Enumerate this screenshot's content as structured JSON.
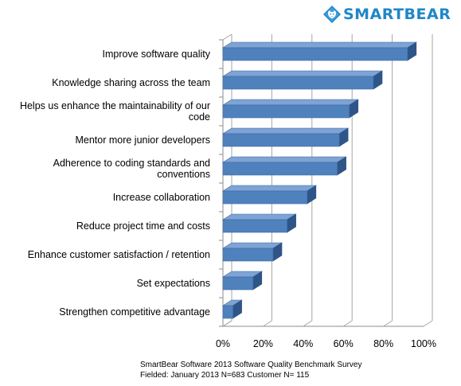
{
  "brand": {
    "logo_text": "SMARTBEAR",
    "logo_color": "#1f87c8",
    "logo_icon": "bear-head-diamond-icon"
  },
  "footnote": {
    "line1": "SmartBear Software 2013 Software Quality Benchmark Survey",
    "line2": "Fielded: January 2013 N=683 Customer N= 115"
  },
  "chart_data": {
    "type": "bar",
    "orientation": "horizontal",
    "three_d": true,
    "title": "",
    "xlabel": "",
    "ylabel": "",
    "xlim": [
      0,
      100
    ],
    "x_ticks": [
      "0%",
      "20%",
      "40%",
      "60%",
      "80%",
      "100%"
    ],
    "x_tick_values": [
      0,
      20,
      40,
      60,
      80,
      100
    ],
    "grid": true,
    "legend": "none",
    "bar_color": "#4f81bd",
    "categories": [
      [
        "Improve software quality"
      ],
      [
        "Knowledge sharing across the team"
      ],
      [
        "Helps us enhance the maintainability of our",
        "code"
      ],
      [
        "Mentor more junior developers"
      ],
      [
        "Adherence to coding standards and",
        "conventions"
      ],
      [
        "Increase collaboration"
      ],
      [
        "Reduce project time and costs"
      ],
      [
        "Enhance customer satisfaction / retention"
      ],
      [
        "Set expectations"
      ],
      [
        "Strengthen competitive advantage"
      ]
    ],
    "values": [
      92,
      75,
      63,
      58,
      57,
      42,
      32,
      25,
      15,
      5
    ]
  }
}
